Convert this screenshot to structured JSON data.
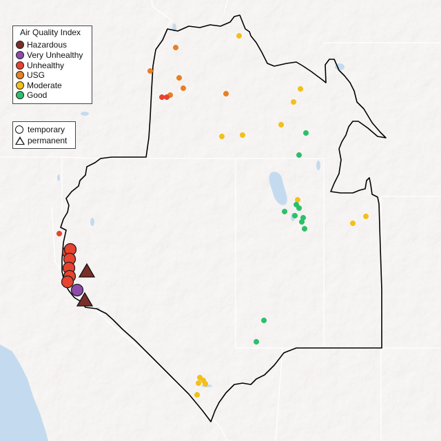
{
  "legend_aqi": {
    "title": "Air Quality Index",
    "items": [
      {
        "label": "Hazardous",
        "color": "#7a2e2a"
      },
      {
        "label": "Very Unhealthy",
        "color": "#8e4bad"
      },
      {
        "label": "Unhealthy",
        "color": "#e8432f"
      },
      {
        "label": "USG",
        "color": "#e88022"
      },
      {
        "label": "Moderate",
        "color": "#f2c01a"
      },
      {
        "label": "Good",
        "color": "#2dbf6a"
      }
    ]
  },
  "legend_type": {
    "items": [
      {
        "label": "temporary",
        "shape": "circle"
      },
      {
        "label": "permanent",
        "shape": "triangle"
      }
    ]
  },
  "colors": {
    "water": "#c4dbef",
    "land": "#e9e6e4",
    "boundary": "#000000"
  }
}
